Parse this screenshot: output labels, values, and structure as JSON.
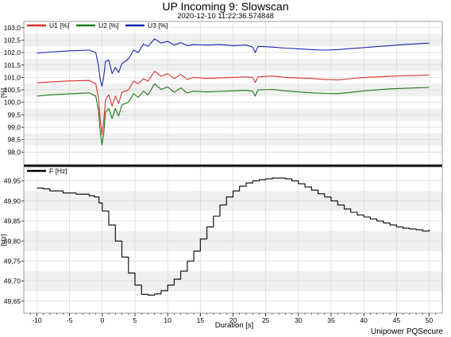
{
  "title": "UP Incoming 9: Slowscan",
  "subtitle": "2020-12-10 11:22:36.574848",
  "footer": "Unipower PQSecure",
  "colors": {
    "u1": "#d9302c",
    "u2": "#1a7a1a",
    "u3": "#1c23b0",
    "f": "#000000",
    "band": "#f0f0f0"
  },
  "chart_data": [
    {
      "type": "line",
      "ylabel": "[%]",
      "xlim": [
        -12,
        52
      ],
      "ylim": [
        97.5,
        103.25
      ],
      "yticks": [
        "98,0",
        "98,5",
        "99,0",
        "99,5",
        "100,0",
        "100,5",
        "101,0",
        "101,5",
        "102,0",
        "102,5",
        "103,0"
      ],
      "legend_position": "top-left",
      "grid": true,
      "series": [
        {
          "name": "U1 [%]",
          "color": "#d9302c",
          "points": [
            [
              -10,
              100.78
            ],
            [
              -8,
              100.82
            ],
            [
              -5,
              100.86
            ],
            [
              -2,
              100.88
            ],
            [
              -1,
              100.75
            ],
            [
              -0.6,
              100.2
            ],
            [
              -0.3,
              99.3
            ],
            [
              -0.05,
              98.7
            ],
            [
              0.2,
              99.2
            ],
            [
              0.5,
              100.1
            ],
            [
              1,
              100.3
            ],
            [
              1.5,
              99.85
            ],
            [
              2,
              100.25
            ],
            [
              2.5,
              99.95
            ],
            [
              3,
              100.4
            ],
            [
              4,
              100.5
            ],
            [
              4.8,
              100.85
            ],
            [
              5.5,
              100.75
            ],
            [
              6.3,
              100.95
            ],
            [
              7,
              100.85
            ],
            [
              8,
              101.25
            ],
            [
              9,
              101.05
            ],
            [
              10,
              101.15
            ],
            [
              11,
              100.95
            ],
            [
              12,
              101.12
            ],
            [
              13,
              100.92
            ],
            [
              14,
              101.0
            ],
            [
              16,
              100.96
            ],
            [
              18,
              100.98
            ],
            [
              20,
              101.0
            ],
            [
              22,
              101.02
            ],
            [
              23,
              101.0
            ],
            [
              23.4,
              100.8
            ],
            [
              23.8,
              101.02
            ],
            [
              26,
              101.06
            ],
            [
              28,
              101.0
            ],
            [
              30,
              100.98
            ],
            [
              32,
              100.96
            ],
            [
              34,
              100.92
            ],
            [
              36,
              100.9
            ],
            [
              38,
              100.95
            ],
            [
              40,
              101.0
            ],
            [
              42,
              101.02
            ],
            [
              44,
              101.05
            ],
            [
              46,
              101.07
            ],
            [
              48,
              101.08
            ],
            [
              50,
              101.1
            ]
          ]
        },
        {
          "name": "U2 [%]",
          "color": "#1a7a1a",
          "points": [
            [
              -10,
              100.25
            ],
            [
              -8,
              100.3
            ],
            [
              -5,
              100.34
            ],
            [
              -2,
              100.38
            ],
            [
              -1,
              100.25
            ],
            [
              -0.6,
              99.7
            ],
            [
              -0.3,
              98.8
            ],
            [
              -0.05,
              98.3
            ],
            [
              0.2,
              98.7
            ],
            [
              0.5,
              99.6
            ],
            [
              1,
              99.75
            ],
            [
              1.5,
              99.35
            ],
            [
              2,
              99.75
            ],
            [
              2.5,
              99.45
            ],
            [
              3,
              99.9
            ],
            [
              4,
              100.0
            ],
            [
              4.8,
              100.35
            ],
            [
              5.5,
              100.2
            ],
            [
              6.3,
              100.45
            ],
            [
              7,
              100.3
            ],
            [
              8,
              100.75
            ],
            [
              9,
              100.52
            ],
            [
              10,
              100.62
            ],
            [
              11,
              100.4
            ],
            [
              12,
              100.58
            ],
            [
              13,
              100.38
            ],
            [
              14,
              100.45
            ],
            [
              16,
              100.42
            ],
            [
              18,
              100.44
            ],
            [
              20,
              100.46
            ],
            [
              22,
              100.48
            ],
            [
              23,
              100.45
            ],
            [
              23.4,
              100.25
            ],
            [
              23.8,
              100.5
            ],
            [
              26,
              100.52
            ],
            [
              28,
              100.46
            ],
            [
              30,
              100.42
            ],
            [
              32,
              100.38
            ],
            [
              34,
              100.36
            ],
            [
              36,
              100.35
            ],
            [
              38,
              100.4
            ],
            [
              40,
              100.46
            ],
            [
              42,
              100.5
            ],
            [
              44,
              100.54
            ],
            [
              46,
              100.56
            ],
            [
              48,
              100.58
            ],
            [
              50,
              100.6
            ]
          ]
        },
        {
          "name": "U3 [%]",
          "color": "#1c23b0",
          "points": [
            [
              -10,
              101.98
            ],
            [
              -8,
              102.02
            ],
            [
              -5,
              102.07
            ],
            [
              -2,
              102.1
            ],
            [
              -1,
              102.0
            ],
            [
              -0.6,
              101.5
            ],
            [
              -0.3,
              100.9
            ],
            [
              -0.05,
              100.65
            ],
            [
              0.2,
              101.0
            ],
            [
              0.5,
              101.65
            ],
            [
              1,
              101.7
            ],
            [
              1.5,
              101.15
            ],
            [
              2,
              101.4
            ],
            [
              2.5,
              101.2
            ],
            [
              3,
              101.55
            ],
            [
              4,
              101.75
            ],
            [
              4.8,
              102.1
            ],
            [
              5.5,
              102.0
            ],
            [
              6.3,
              102.35
            ],
            [
              7,
              102.25
            ],
            [
              8,
              102.55
            ],
            [
              9,
              102.38
            ],
            [
              10,
              102.45
            ],
            [
              11,
              102.3
            ],
            [
              12,
              102.4
            ],
            [
              13,
              102.28
            ],
            [
              14,
              102.32
            ],
            [
              16,
              102.3
            ],
            [
              18,
              102.32
            ],
            [
              20,
              102.28
            ],
            [
              22,
              102.3
            ],
            [
              23,
              102.22
            ],
            [
              23.4,
              102.0
            ],
            [
              23.8,
              102.25
            ],
            [
              26,
              102.22
            ],
            [
              28,
              102.18
            ],
            [
              30,
              102.15
            ],
            [
              32,
              102.12
            ],
            [
              34,
              102.1
            ],
            [
              36,
              102.12
            ],
            [
              38,
              102.16
            ],
            [
              40,
              102.2
            ],
            [
              42,
              102.24
            ],
            [
              44,
              102.28
            ],
            [
              46,
              102.32
            ],
            [
              48,
              102.35
            ],
            [
              50,
              102.38
            ]
          ]
        }
      ]
    },
    {
      "type": "line",
      "ylabel": "[Hz]",
      "xlabel": "Duration [s]",
      "xlim": [
        -12,
        52
      ],
      "ylim": [
        49.62,
        49.985
      ],
      "xticks": [
        -10,
        -5,
        0,
        5,
        10,
        15,
        20,
        25,
        30,
        35,
        40,
        45,
        50
      ],
      "yticks": [
        "49,65",
        "49,70",
        "49,75",
        "49,80",
        "49,85",
        "49,90",
        "49,95"
      ],
      "legend_position": "top-left",
      "grid": true,
      "series": [
        {
          "name": "F [Hz]",
          "color": "#000000",
          "step": true,
          "points": [
            [
              -10,
              49.932
            ],
            [
              -9,
              49.93
            ],
            [
              -8,
              49.925
            ],
            [
              -6,
              49.92
            ],
            [
              -4,
              49.917
            ],
            [
              -2,
              49.913
            ],
            [
              -1.2,
              49.91
            ],
            [
              -0.5,
              49.895
            ],
            [
              0,
              49.875
            ],
            [
              1,
              49.84
            ],
            [
              2,
              49.8
            ],
            [
              3,
              49.76
            ],
            [
              4,
              49.72
            ],
            [
              5,
              49.69
            ],
            [
              6,
              49.667
            ],
            [
              7,
              49.665
            ],
            [
              8,
              49.668
            ],
            [
              9,
              49.676
            ],
            [
              10,
              49.69
            ],
            [
              11,
              49.705
            ],
            [
              12,
              49.725
            ],
            [
              13,
              49.75
            ],
            [
              14,
              49.775
            ],
            [
              15,
              49.805
            ],
            [
              16,
              49.835
            ],
            [
              17,
              49.862
            ],
            [
              18,
              49.89
            ],
            [
              19,
              49.91
            ],
            [
              20,
              49.925
            ],
            [
              21,
              49.937
            ],
            [
              22,
              49.945
            ],
            [
              23,
              49.95
            ],
            [
              24,
              49.953
            ],
            [
              25,
              49.955
            ],
            [
              26,
              49.957
            ],
            [
              27,
              49.957
            ],
            [
              28,
              49.955
            ],
            [
              29,
              49.95
            ],
            [
              30,
              49.943
            ],
            [
              31,
              49.935
            ],
            [
              32,
              49.927
            ],
            [
              33,
              49.918
            ],
            [
              34,
              49.91
            ],
            [
              35,
              49.9
            ],
            [
              36,
              49.89
            ],
            [
              37,
              49.88
            ],
            [
              38,
              49.872
            ],
            [
              39,
              49.865
            ],
            [
              40,
              49.86
            ],
            [
              41,
              49.855
            ],
            [
              42,
              49.85
            ],
            [
              43,
              49.845
            ],
            [
              44,
              49.84
            ],
            [
              45,
              49.835
            ],
            [
              46,
              49.832
            ],
            [
              47,
              49.83
            ],
            [
              48,
              49.828
            ],
            [
              49,
              49.825
            ],
            [
              50,
              49.828
            ]
          ]
        }
      ]
    }
  ]
}
